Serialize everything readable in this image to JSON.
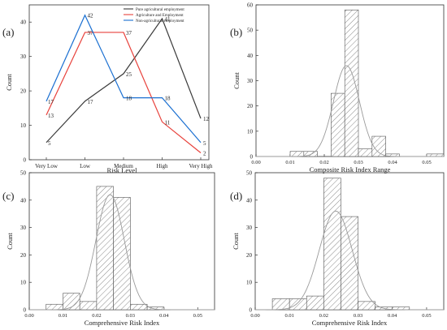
{
  "panels": [
    {
      "letter": "(a)"
    },
    {
      "letter": "(b)"
    },
    {
      "letter": "(c)"
    },
    {
      "letter": "(d)"
    }
  ],
  "chart_data": [
    {
      "type": "line",
      "title": "",
      "xlabel": "Risk Level",
      "ylabel": "Count",
      "categories": [
        "Very Low",
        "Low",
        "Medium",
        "High",
        "Very High"
      ],
      "ylim": [
        0,
        45
      ],
      "yticks": [
        0,
        10,
        20,
        30,
        40
      ],
      "legend_position": "top-right",
      "series": [
        {
          "name": "Pure agricultural employment",
          "color": "#3a3a3a",
          "values": [
            5,
            17,
            25,
            41,
            12
          ]
        },
        {
          "name": "Agriculture and Employment",
          "color": "#e8423c",
          "values": [
            13,
            37,
            37,
            11,
            2
          ]
        },
        {
          "name": "Non-agricultural employment",
          "color": "#1a6fd1",
          "values": [
            17,
            42,
            18,
            18,
            5
          ]
        }
      ]
    },
    {
      "type": "bar",
      "title": "",
      "xlabel": "Composite Risk Index Range",
      "ylabel": "Count",
      "xlim": [
        0,
        0.055
      ],
      "ylim": [
        0,
        60
      ],
      "xticks": [
        "0.00",
        "0.01",
        "0.02",
        "0.03",
        "0.04",
        "0.05"
      ],
      "yticks": [
        0,
        10,
        20,
        30,
        40,
        50,
        60
      ],
      "bins": [
        {
          "start": 0.01,
          "end": 0.014,
          "count": 2
        },
        {
          "start": 0.014,
          "end": 0.018,
          "count": 2
        },
        {
          "start": 0.022,
          "end": 0.026,
          "count": 25
        },
        {
          "start": 0.026,
          "end": 0.03,
          "count": 58
        },
        {
          "start": 0.03,
          "end": 0.034,
          "count": 3
        },
        {
          "start": 0.034,
          "end": 0.038,
          "count": 8
        },
        {
          "start": 0.038,
          "end": 0.042,
          "count": 1
        },
        {
          "start": 0.05,
          "end": 0.055,
          "count": 1
        }
      ],
      "normal_fit": {
        "mean": 0.0265,
        "sd": 0.0038,
        "peak": 36
      }
    },
    {
      "type": "bar",
      "title": "",
      "xlabel": "Comprehensive Risk Index",
      "ylabel": "Count",
      "xlim": [
        0,
        0.055
      ],
      "ylim": [
        0,
        50
      ],
      "xticks": [
        "0.00",
        "0.01",
        "0.02",
        "0.03",
        "0.04",
        "0.05"
      ],
      "yticks": [
        0,
        10,
        20,
        30,
        40,
        50
      ],
      "bins": [
        {
          "start": 0.005,
          "end": 0.01,
          "count": 2
        },
        {
          "start": 0.01,
          "end": 0.015,
          "count": 6
        },
        {
          "start": 0.015,
          "end": 0.02,
          "count": 3
        },
        {
          "start": 0.02,
          "end": 0.025,
          "count": 45
        },
        {
          "start": 0.025,
          "end": 0.03,
          "count": 41
        },
        {
          "start": 0.03,
          "end": 0.035,
          "count": 2
        },
        {
          "start": 0.035,
          "end": 0.04,
          "count": 1
        }
      ],
      "normal_fit": {
        "mean": 0.024,
        "sd": 0.0042,
        "peak": 42
      }
    },
    {
      "type": "bar",
      "title": "",
      "xlabel": "Comprehensive Risk Index",
      "ylabel": "Count",
      "xlim": [
        0,
        0.055
      ],
      "ylim": [
        0,
        50
      ],
      "xticks": [
        "0.00",
        "0.01",
        "0.02",
        "0.03",
        "0.04",
        "0.05"
      ],
      "yticks": [
        0,
        10,
        20,
        30,
        40,
        50
      ],
      "bins": [
        {
          "start": 0.005,
          "end": 0.01,
          "count": 4
        },
        {
          "start": 0.01,
          "end": 0.015,
          "count": 4
        },
        {
          "start": 0.015,
          "end": 0.02,
          "count": 5
        },
        {
          "start": 0.02,
          "end": 0.025,
          "count": 48
        },
        {
          "start": 0.025,
          "end": 0.03,
          "count": 34
        },
        {
          "start": 0.03,
          "end": 0.035,
          "count": 3
        },
        {
          "start": 0.035,
          "end": 0.04,
          "count": 1
        },
        {
          "start": 0.04,
          "end": 0.045,
          "count": 1
        }
      ],
      "normal_fit": {
        "mean": 0.0235,
        "sd": 0.0048,
        "peak": 36
      }
    }
  ]
}
